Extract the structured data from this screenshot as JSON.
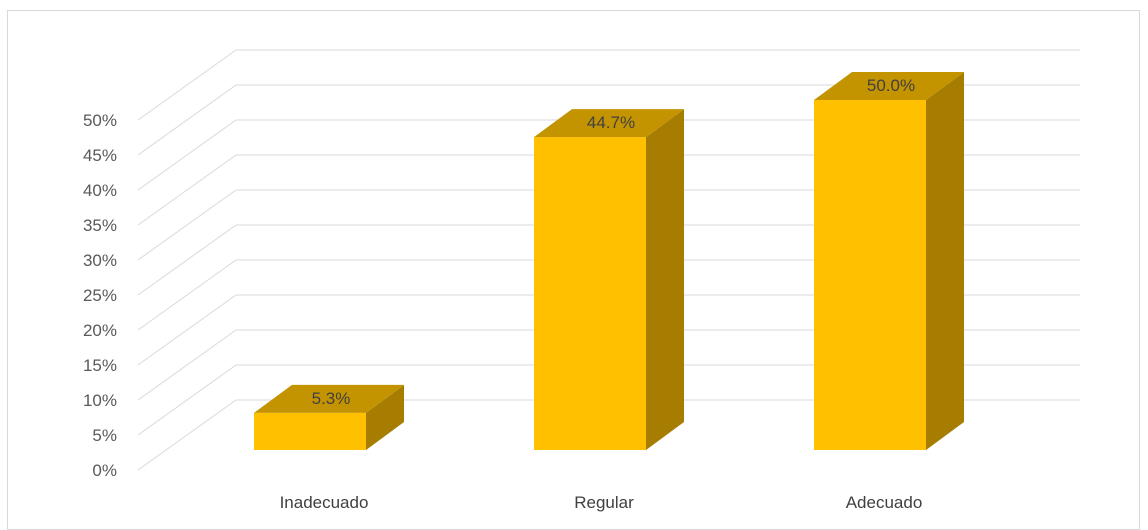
{
  "chart_data": {
    "type": "bar",
    "style": "3d-column",
    "categories": [
      "Inadecuado",
      "Regular",
      "Adecuado"
    ],
    "values": [
      5.3,
      44.7,
      50.0
    ],
    "data_labels": [
      "5.3%",
      "44.7%",
      "50.0%"
    ],
    "y_ticks": [
      "0%",
      "5%",
      "10%",
      "15%",
      "20%",
      "25%",
      "30%",
      "35%",
      "40%",
      "45%",
      "50%"
    ],
    "ylim": [
      0,
      50
    ],
    "grid": true,
    "legend": "none",
    "colors": {
      "bar_front": "#FFC000",
      "bar_top": "#C49400",
      "bar_side": "#A67D00",
      "gridline": "#d9d9d9"
    }
  }
}
